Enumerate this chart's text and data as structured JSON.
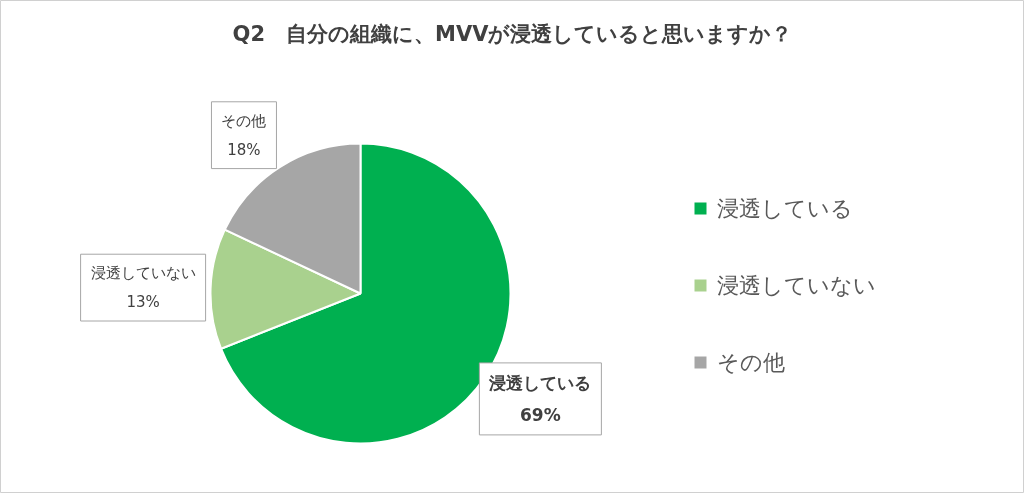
{
  "chart_data": {
    "type": "pie",
    "title": "Q2　自分の組織に、MVVが浸透していると思いますか？",
    "categories": [
      "浸透している",
      "浸透していない",
      "その他"
    ],
    "values": [
      69,
      13,
      18
    ],
    "colors": [
      "#00b050",
      "#a9d18e",
      "#a6a6a6"
    ],
    "value_labels": [
      "69%",
      "13%",
      "18%"
    ],
    "legend": "right"
  }
}
